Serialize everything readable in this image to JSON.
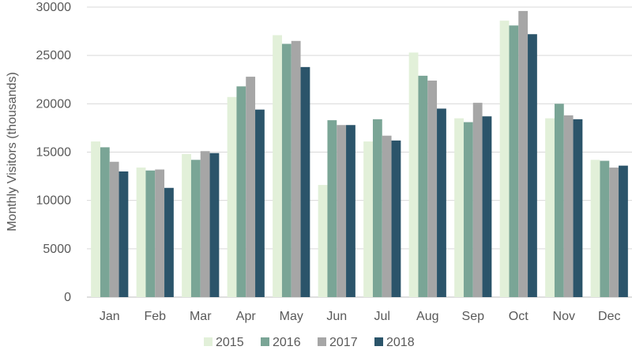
{
  "chart_data": {
    "type": "bar",
    "title": "",
    "xlabel": "",
    "ylabel": "Monthly Visitors (thousands)",
    "ylim": [
      0,
      30000
    ],
    "yticks": [
      0,
      5000,
      10000,
      15000,
      20000,
      25000,
      30000
    ],
    "grid": true,
    "legend_position": "bottom",
    "categories": [
      "Jan",
      "Feb",
      "Mar",
      "Apr",
      "May",
      "Jun",
      "Jul",
      "Aug",
      "Sep",
      "Oct",
      "Nov",
      "Dec"
    ],
    "series": [
      {
        "name": "2015",
        "color": "#e2f0d9",
        "values": [
          16100,
          13400,
          14800,
          20700,
          27100,
          11600,
          16100,
          25300,
          18500,
          28600,
          18500,
          14200
        ]
      },
      {
        "name": "2016",
        "color": "#7aa596",
        "values": [
          15500,
          13100,
          14200,
          21800,
          26200,
          18300,
          18400,
          22900,
          18100,
          28100,
          20000,
          14100
        ]
      },
      {
        "name": "2017",
        "color": "#a6a6a6",
        "values": [
          14000,
          13200,
          15100,
          22800,
          26500,
          17800,
          16700,
          22400,
          20100,
          29600,
          18800,
          13400
        ]
      },
      {
        "name": "2018",
        "color": "#2b546a",
        "values": [
          13000,
          11300,
          14900,
          19400,
          23800,
          17800,
          16200,
          19500,
          18700,
          27200,
          18400,
          13600
        ]
      }
    ]
  }
}
